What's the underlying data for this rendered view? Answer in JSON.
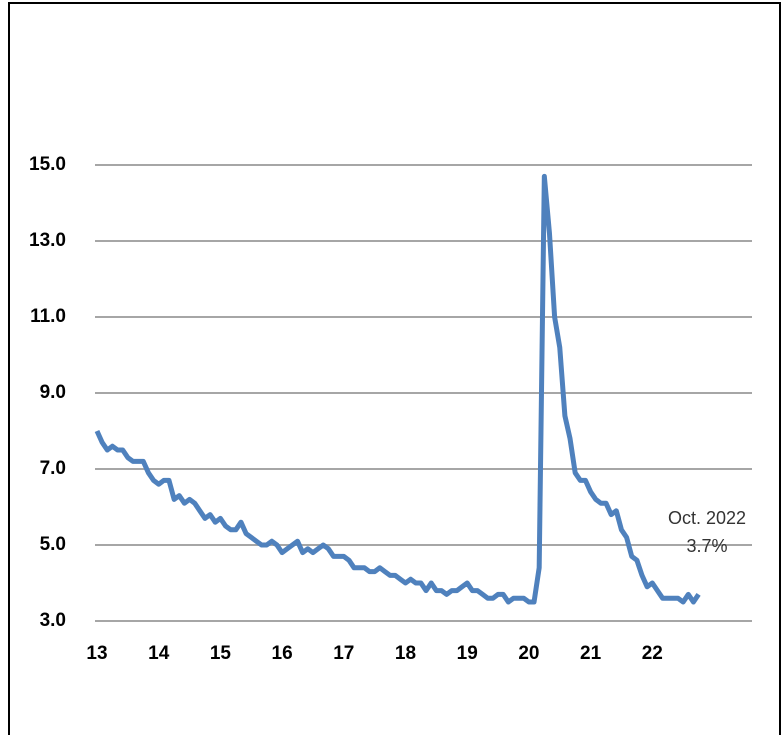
{
  "chart_data": {
    "type": "line",
    "categories": [
      "13",
      null,
      null,
      null,
      null,
      null,
      null,
      null,
      null,
      null,
      null,
      null,
      "14",
      null,
      null,
      null,
      null,
      null,
      null,
      null,
      null,
      null,
      null,
      null,
      "15",
      null,
      null,
      null,
      null,
      null,
      null,
      null,
      null,
      null,
      null,
      null,
      "16",
      null,
      null,
      null,
      null,
      null,
      null,
      null,
      null,
      null,
      null,
      null,
      "17",
      null,
      null,
      null,
      null,
      null,
      null,
      null,
      null,
      null,
      null,
      null,
      "18",
      null,
      null,
      null,
      null,
      null,
      null,
      null,
      null,
      null,
      null,
      null,
      "19",
      null,
      null,
      null,
      null,
      null,
      null,
      null,
      null,
      null,
      null,
      null,
      "20",
      null,
      null,
      null,
      null,
      null,
      null,
      null,
      null,
      null,
      null,
      null,
      "21",
      null,
      null,
      null,
      null,
      null,
      null,
      null,
      null,
      null,
      null,
      null,
      "22",
      null,
      null,
      null,
      null,
      null,
      null,
      null,
      null,
      null
    ],
    "values": [
      8.0,
      7.7,
      7.5,
      7.6,
      7.5,
      7.5,
      7.3,
      7.2,
      7.2,
      7.2,
      6.9,
      6.7,
      6.6,
      6.7,
      6.7,
      6.2,
      6.3,
      6.1,
      6.2,
      6.1,
      5.9,
      5.7,
      5.8,
      5.6,
      5.7,
      5.5,
      5.4,
      5.4,
      5.6,
      5.3,
      5.2,
      5.1,
      5.0,
      5.0,
      5.1,
      5.0,
      4.8,
      4.9,
      5.0,
      5.1,
      4.8,
      4.9,
      4.8,
      4.9,
      5.0,
      4.9,
      4.7,
      4.7,
      4.7,
      4.6,
      4.4,
      4.4,
      4.4,
      4.3,
      4.3,
      4.4,
      4.3,
      4.2,
      4.2,
      4.1,
      4.0,
      4.1,
      4.0,
      4.0,
      3.8,
      4.0,
      3.8,
      3.8,
      3.7,
      3.8,
      3.8,
      3.9,
      4.0,
      3.8,
      3.8,
      3.7,
      3.6,
      3.6,
      3.7,
      3.7,
      3.5,
      3.6,
      3.6,
      3.6,
      3.5,
      3.5,
      4.4,
      14.7,
      13.2,
      11.0,
      10.2,
      8.4,
      7.8,
      6.9,
      6.7,
      6.7,
      6.4,
      6.2,
      6.1,
      6.1,
      5.8,
      5.9,
      5.4,
      5.2,
      4.7,
      4.6,
      4.2,
      3.9,
      4.0,
      3.8,
      3.6,
      3.6,
      3.6,
      3.6,
      3.5,
      3.7,
      3.5,
      3.7
    ],
    "color": "#4f81bd",
    "ylim": [
      3,
      15
    ],
    "yticks": [
      {
        "value": 3,
        "label": "3.0"
      },
      {
        "value": 5,
        "label": "5.0"
      },
      {
        "value": 7,
        "label": "7.0"
      },
      {
        "value": 9,
        "label": "9.0"
      },
      {
        "value": 11,
        "label": "11.0"
      },
      {
        "value": 13,
        "label": "13.0"
      },
      {
        "value": 15,
        "label": "15.0"
      }
    ],
    "grid": true,
    "annotation": [
      "Oct. 2022",
      "3.7%"
    ]
  }
}
